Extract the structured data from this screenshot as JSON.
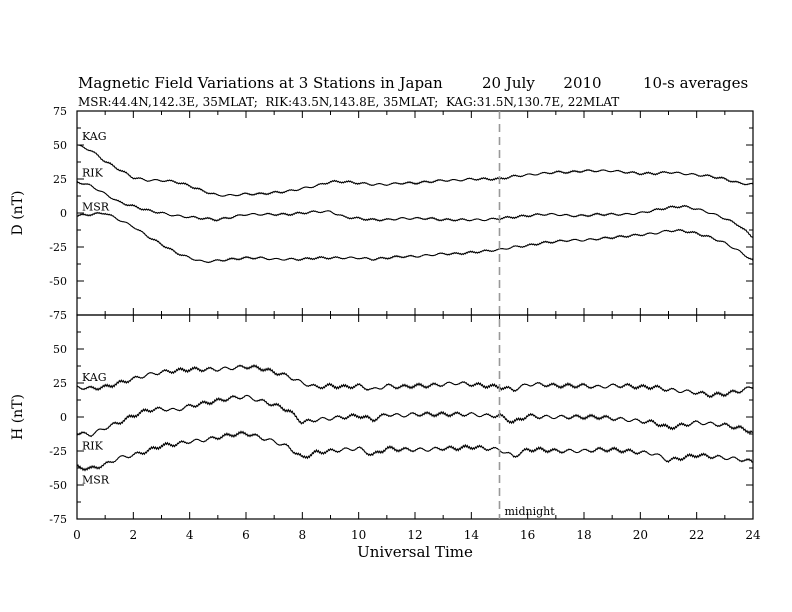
{
  "header": {
    "title": "Magnetic Field Variations at 3 Stations in Japan",
    "date": "20 July      2010",
    "averaging": "10-s averages",
    "stations": "MSR:44.4N,142.3E, 35MLAT;  RIK:43.5N,143.8E, 35MLAT;  KAG:31.5N,130.7E, 22MLAT"
  },
  "colors": {
    "trace": "#000000",
    "midnight_line": "#999999",
    "axes": "#000000"
  },
  "chart_data": [
    {
      "type": "line",
      "panel": "D",
      "ylabel": "D (nT)",
      "ylim": [
        -75,
        75
      ],
      "yticks": [
        "75",
        "50",
        "25",
        "0",
        "-25",
        "-50",
        "-75"
      ],
      "xlim": [
        0,
        24
      ],
      "series": [
        {
          "name": "KAG",
          "x": [
            0,
            0.5,
            1,
            1.5,
            2,
            2.5,
            3,
            3.5,
            4,
            4.5,
            5,
            5.5,
            6,
            6.5,
            7,
            7.5,
            8,
            8.5,
            9,
            9.5,
            10,
            10.5,
            11,
            11.5,
            12,
            12.5,
            13,
            13.5,
            14,
            14.5,
            15,
            15.5,
            16,
            16.5,
            17,
            17.5,
            18,
            18.5,
            19,
            19.5,
            20,
            20.5,
            21,
            21.5,
            22,
            22.5,
            23,
            23.5,
            24
          ],
          "y": [
            50,
            46,
            38,
            32,
            26,
            24,
            24,
            23,
            20,
            16,
            13,
            13,
            14,
            14,
            15,
            16,
            18,
            20,
            23,
            23,
            22,
            21,
            21,
            22,
            22,
            23,
            24,
            24,
            25,
            25,
            25,
            27,
            28,
            29,
            30,
            30,
            31,
            31,
            31,
            30,
            29,
            29,
            30,
            29,
            28,
            27,
            25,
            22,
            21
          ]
        },
        {
          "name": "RIK",
          "x": [
            0,
            0.5,
            1,
            1.5,
            2,
            2.5,
            3,
            3.5,
            4,
            4.5,
            5,
            5.5,
            6,
            6.5,
            7,
            7.5,
            8,
            8.5,
            9,
            9.5,
            10,
            10.5,
            11,
            11.5,
            12,
            12.5,
            13,
            13.5,
            14,
            14.5,
            15,
            15.5,
            16,
            16.5,
            17,
            17.5,
            18,
            18.5,
            19,
            19.5,
            20,
            20.5,
            21,
            21.5,
            22,
            22.5,
            23,
            23.5,
            24
          ],
          "y": [
            23,
            20,
            14,
            8,
            5,
            2,
            0,
            -2,
            -3,
            -4,
            -5,
            -3,
            -1,
            -1,
            -1,
            -1,
            0,
            1,
            1,
            -3,
            -4,
            -5,
            -5,
            -4,
            -4,
            -4,
            -5,
            -5,
            -5,
            -5,
            -4,
            -3,
            -2,
            -1,
            -1,
            -2,
            -2,
            -1,
            -1,
            -1,
            0,
            2,
            4,
            5,
            3,
            0,
            -4,
            -9,
            -18
          ]
        },
        {
          "name": "MSR",
          "x": [
            0,
            0.5,
            1,
            1.5,
            2,
            2.5,
            3,
            3.5,
            4,
            4.5,
            5,
            5.5,
            6,
            6.5,
            7,
            7.5,
            8,
            8.5,
            9,
            9.5,
            10,
            10.5,
            11,
            11.5,
            12,
            12.5,
            13,
            13.5,
            14,
            14.5,
            15,
            15.5,
            16,
            16.5,
            17,
            17.5,
            18,
            18.5,
            19,
            19.5,
            20,
            20.5,
            21,
            21.5,
            22,
            22.5,
            23,
            23.5,
            24
          ],
          "y": [
            -2,
            -1,
            0,
            -5,
            -10,
            -17,
            -23,
            -29,
            -33,
            -36,
            -35,
            -34,
            -33,
            -33,
            -34,
            -34,
            -34,
            -33,
            -33,
            -33,
            -33,
            -34,
            -33,
            -32,
            -32,
            -31,
            -30,
            -30,
            -29,
            -28,
            -27,
            -25,
            -24,
            -22,
            -21,
            -20,
            -20,
            -19,
            -18,
            -17,
            -16,
            -15,
            -13,
            -13,
            -15,
            -18,
            -22,
            -28,
            -35
          ]
        }
      ]
    },
    {
      "type": "line",
      "panel": "H",
      "ylabel": "H (nT)",
      "ylim": [
        -75,
        75
      ],
      "yticks": [
        "75",
        "50",
        "25",
        "0",
        "-25",
        "-50",
        "-75"
      ],
      "xlim": [
        0,
        24
      ],
      "xlabel": "Universal Time",
      "xticks": [
        "0",
        "2",
        "4",
        "6",
        "8",
        "10",
        "12",
        "14",
        "16",
        "18",
        "20",
        "22",
        "24"
      ],
      "annotation": {
        "text": "midnight",
        "x": 15
      },
      "series": [
        {
          "name": "KAG",
          "x": [
            0,
            0.5,
            1,
            1.5,
            2,
            2.5,
            3,
            3.5,
            4,
            4.5,
            5,
            5.5,
            6,
            6.5,
            7,
            7.5,
            8,
            8.5,
            9,
            9.5,
            10,
            10.5,
            11,
            11.5,
            12,
            12.5,
            13,
            13.5,
            14,
            14.5,
            15,
            15.5,
            16,
            16.5,
            17,
            17.5,
            18,
            18.5,
            19,
            19.5,
            20,
            20.5,
            21,
            21.5,
            22,
            22.5,
            23,
            23.5,
            24
          ],
          "y": [
            22,
            21,
            22,
            25,
            28,
            31,
            33,
            34,
            35,
            35,
            35,
            36,
            37,
            36,
            33,
            30,
            25,
            22,
            23,
            22,
            23,
            20,
            23,
            22,
            23,
            23,
            24,
            25,
            24,
            23,
            22,
            20,
            24,
            24,
            23,
            23,
            23,
            22,
            23,
            23,
            22,
            22,
            20,
            19,
            18,
            16,
            17,
            19,
            22
          ]
        },
        {
          "name": "RIK",
          "x": [
            0,
            0.5,
            1,
            1.5,
            2,
            2.5,
            3,
            3.5,
            4,
            4.5,
            5,
            5.5,
            6,
            6.5,
            7,
            7.5,
            8,
            8.5,
            9,
            9.5,
            10,
            10.5,
            11,
            11.5,
            12,
            12.5,
            13,
            13.5,
            14,
            14.5,
            15,
            15.5,
            16,
            16.5,
            17,
            17.5,
            18,
            18.5,
            19,
            19.5,
            20,
            20.5,
            21,
            21.5,
            22,
            22.5,
            23,
            23.5,
            24
          ],
          "y": [
            -12,
            -13,
            -8,
            -4,
            1,
            5,
            6,
            5,
            8,
            10,
            12,
            14,
            15,
            12,
            9,
            5,
            -4,
            -2,
            -1,
            0,
            1,
            -2,
            2,
            1,
            2,
            2,
            2,
            2,
            2,
            1,
            1,
            -4,
            1,
            0,
            0,
            0,
            0,
            0,
            -1,
            -2,
            -3,
            -4,
            -8,
            -6,
            -4,
            -5,
            -6,
            -8,
            -11
          ]
        },
        {
          "name": "MSR",
          "x": [
            0,
            0.5,
            1,
            1.5,
            2,
            2.5,
            3,
            3.5,
            4,
            4.5,
            5,
            5.5,
            6,
            6.5,
            7,
            7.5,
            8,
            8.5,
            9,
            9.5,
            10,
            10.5,
            11,
            11.5,
            12,
            12.5,
            13,
            13.5,
            14,
            14.5,
            15,
            15.5,
            16,
            16.5,
            17,
            17.5,
            18,
            18.5,
            19,
            19.5,
            20,
            20.5,
            21,
            21.5,
            22,
            22.5,
            23,
            23.5,
            24
          ],
          "y": [
            -37,
            -38,
            -35,
            -30,
            -28,
            -25,
            -21,
            -20,
            -18,
            -17,
            -15,
            -13,
            -12,
            -15,
            -18,
            -22,
            -30,
            -26,
            -25,
            -24,
            -23,
            -28,
            -23,
            -24,
            -24,
            -24,
            -23,
            -23,
            -22,
            -23,
            -24,
            -29,
            -24,
            -24,
            -25,
            -25,
            -25,
            -24,
            -24,
            -25,
            -26,
            -27,
            -32,
            -30,
            -28,
            -29,
            -30,
            -31,
            -33
          ]
        }
      ]
    }
  ]
}
